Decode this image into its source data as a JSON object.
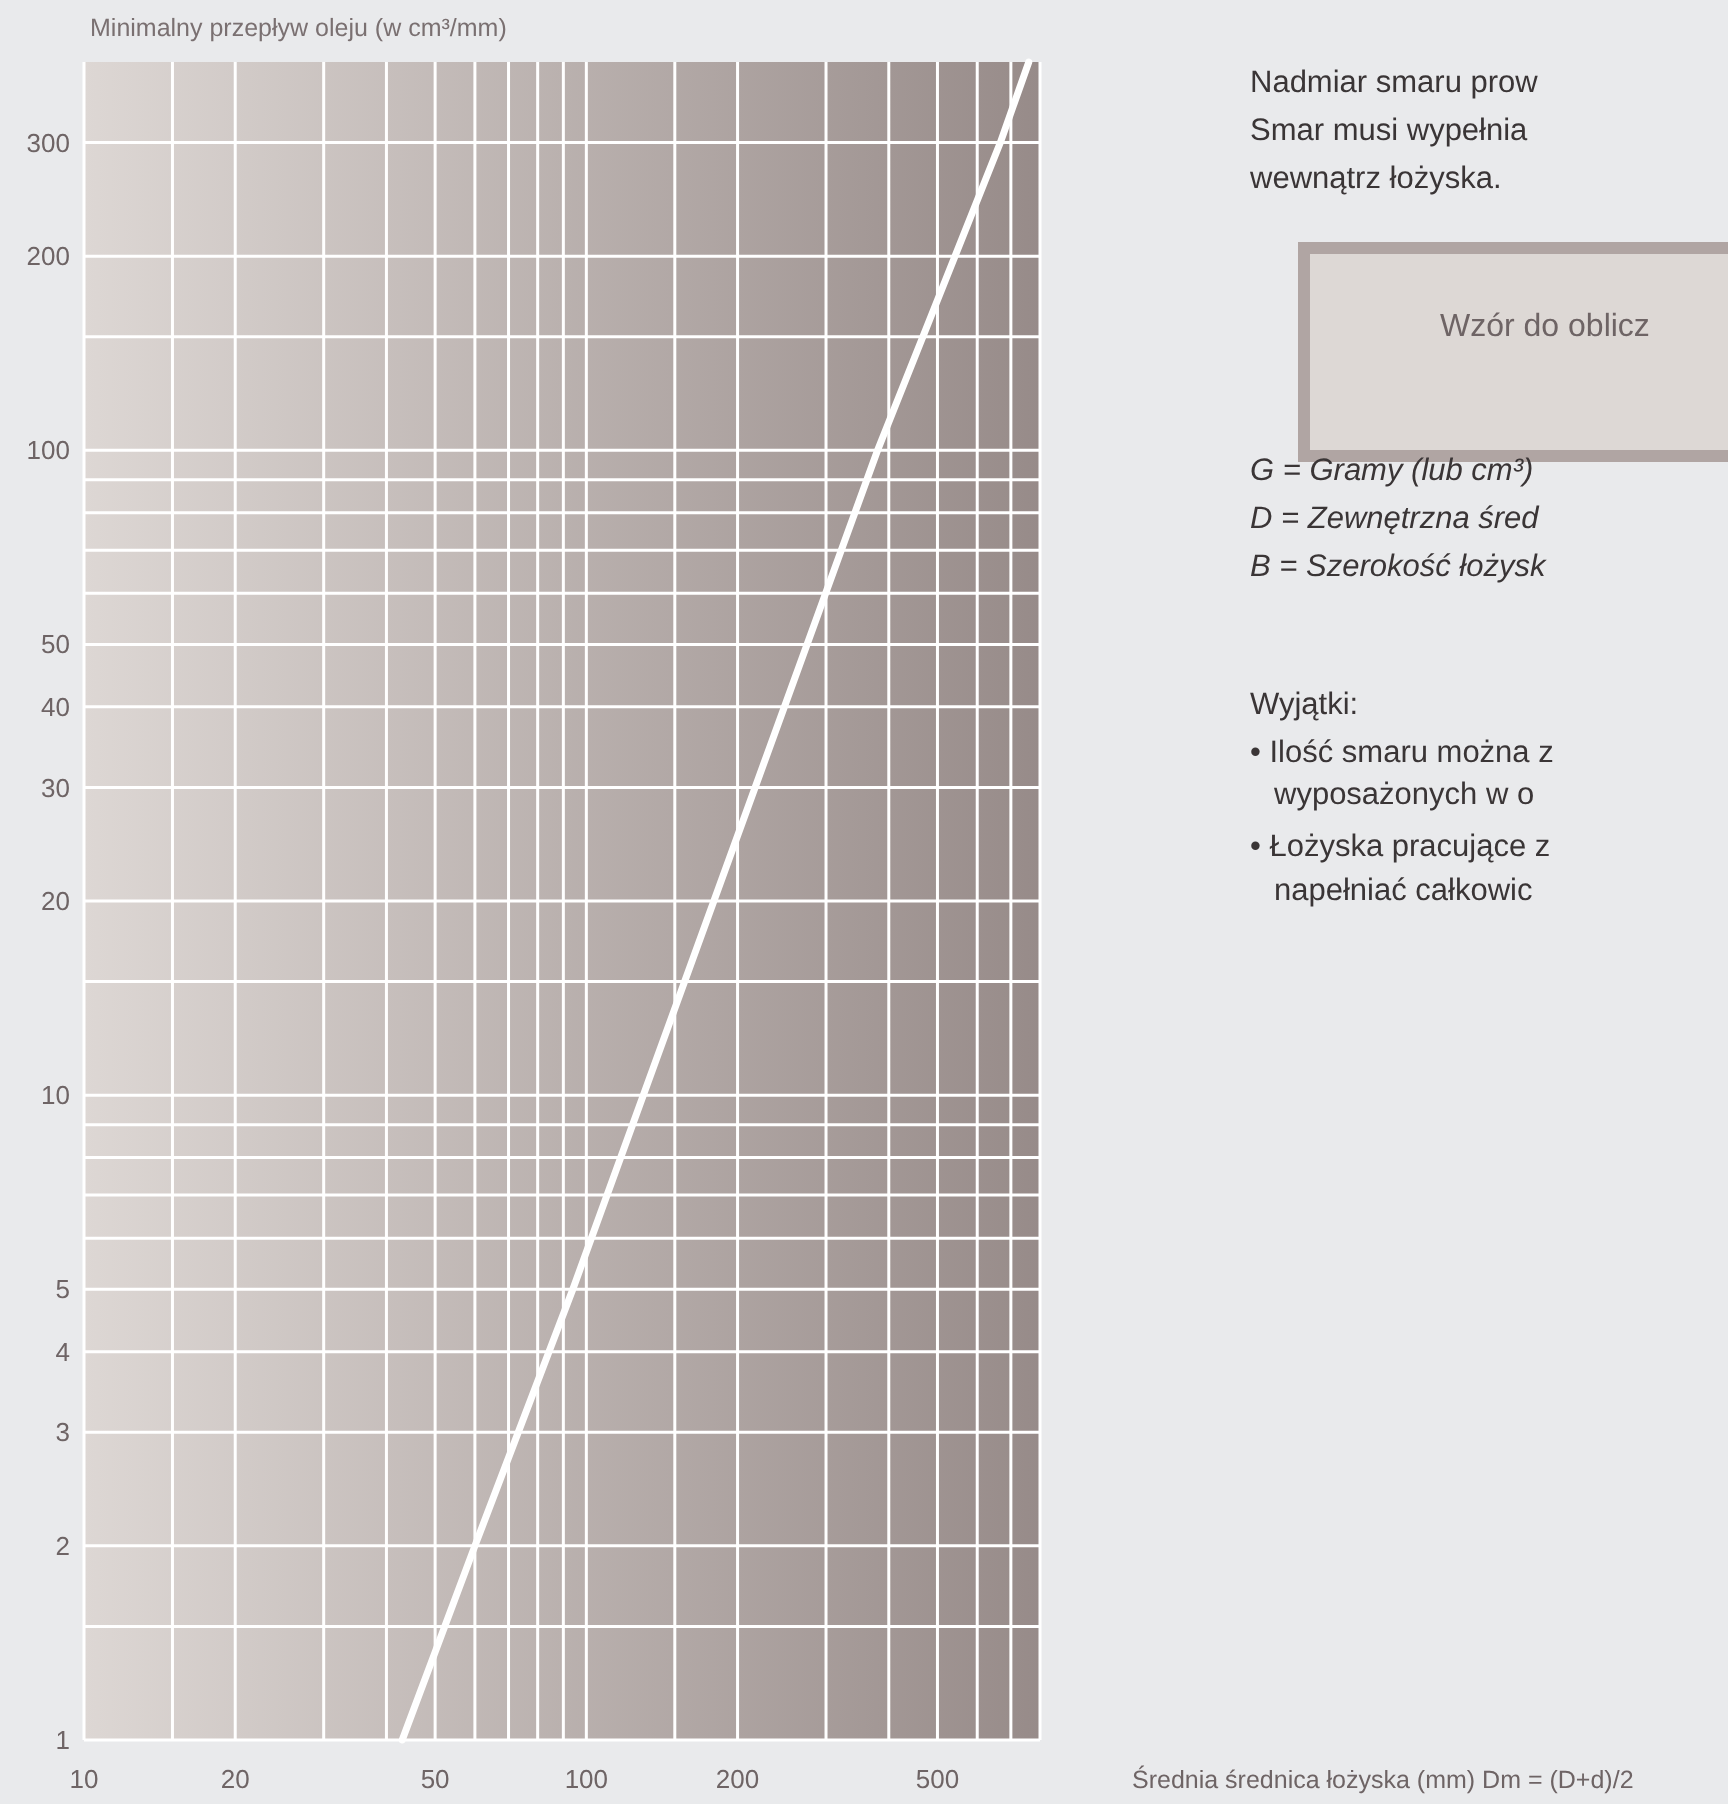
{
  "chart_data": {
    "type": "line",
    "ylabel": "Minimalny przepływ oleju (w cm³/mm)",
    "xlabel": "Średnia średnica łożyska (mm) Dm = (D+d)/2",
    "x": [
      43,
      60,
      94,
      380,
      667,
      760
    ],
    "values": [
      1,
      2,
      5,
      100,
      300,
      400
    ],
    "color": "#ffffff",
    "log": "xy",
    "grid": true,
    "xlim": [
      10,
      800
    ],
    "xticks": [
      10,
      {
        "value": 15,
        "label": null
      },
      20,
      {
        "value": 30,
        "label": null
      },
      {
        "value": 40,
        "label": null
      },
      50,
      {
        "value": 60,
        "label": null
      },
      {
        "value": 70,
        "label": null
      },
      {
        "value": 80,
        "label": null
      },
      {
        "value": 90,
        "label": null
      },
      100,
      {
        "value": 150,
        "label": null
      },
      200,
      {
        "value": 300,
        "label": null
      },
      {
        "value": 400,
        "label": null
      },
      500,
      {
        "value": 600,
        "label": null
      },
      {
        "value": 700,
        "label": null
      },
      {
        "value": 800,
        "label": null
      }
    ],
    "ylim": [
      1,
      400
    ],
    "yticks": [
      1,
      {
        "value": 1.5,
        "label": null
      },
      2,
      3,
      4,
      5,
      {
        "value": 6,
        "label": null
      },
      {
        "value": 7,
        "label": null
      },
      {
        "value": 8,
        "label": null
      },
      {
        "value": 9,
        "label": null
      },
      10,
      {
        "value": 15,
        "label": null
      },
      20,
      30,
      40,
      50,
      {
        "value": 60,
        "label": null
      },
      {
        "value": 70,
        "label": null
      },
      {
        "value": 80,
        "label": null
      },
      {
        "value": 90,
        "label": null
      },
      100,
      {
        "value": 150,
        "label": null
      },
      200,
      300
    ],
    "annotations": [
      "Nadmiar smaru prow",
      "Smar musi wypełnia",
      "wewnątrz łożyska.",
      "Wzór do oblicz",
      "G = Gramy (lub cm³)",
      "D = Zewnętrzna śred",
      "B = Szerokość łożysk",
      "Wyjątki:",
      "• Ilość smaru można z",
      "wyposażonych w o",
      "• Łożyska pracujące z",
      "napełniać całkowic"
    ]
  }
}
